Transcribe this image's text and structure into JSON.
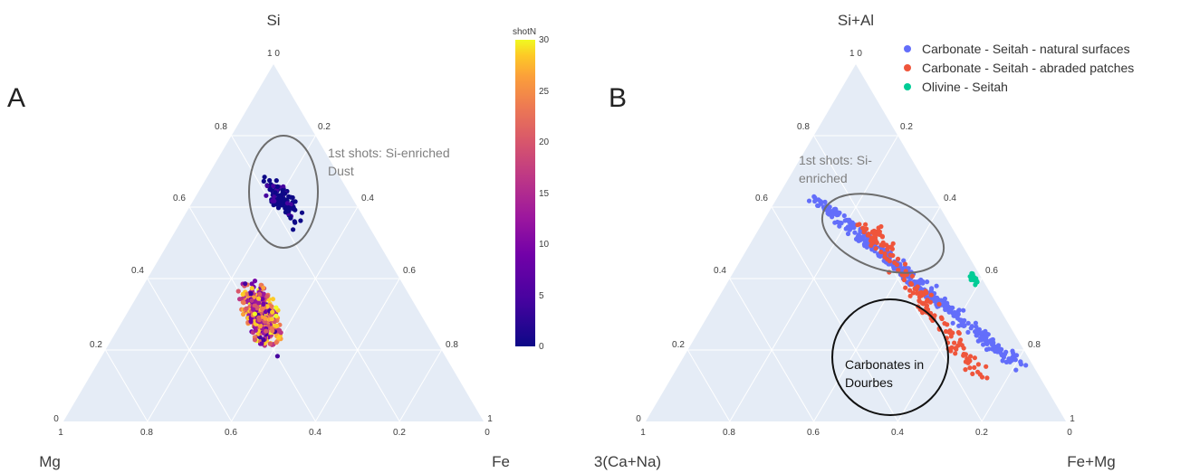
{
  "chart_data": [
    {
      "type": "scatter",
      "subtype": "ternary",
      "panel_label": "A",
      "vertex_labels": {
        "top": "Si",
        "left": "Mg",
        "right": "Fe"
      },
      "top_tick_labels": [
        "1 0",
        "0.8",
        "0.6",
        "0.4",
        "0.2",
        "0"
      ],
      "bottom_tick_labels": [
        "1",
        "0.8",
        "0.6",
        "0.4",
        "0.2",
        "0"
      ],
      "right_tick_labels": [
        "0.2",
        "0.4",
        "0.6",
        "0.8",
        "1"
      ],
      "annotation": {
        "lines": [
          "1st shots: Si-enriched",
          "Dust"
        ],
        "circle_center": {
          "si": 0.6,
          "mg": 0.18,
          "fe": 0.22
        }
      },
      "colorbar": {
        "title": "shotN",
        "range": [
          0,
          30
        ],
        "ticks": [
          "0",
          "5",
          "10",
          "15",
          "20",
          "25",
          "30"
        ],
        "colorscale": "plasma"
      },
      "series": [
        {
          "description": "first shots (shotN ~0-2), Si-enriched dust cluster",
          "center": {
            "si": 0.62,
            "mg": 0.17,
            "fe": 0.21
          },
          "count": 110,
          "shotN_range": [
            0,
            2
          ]
        },
        {
          "description": "later shots, main cloud",
          "center": {
            "si": 0.3,
            "mg": 0.38,
            "fe": 0.32
          },
          "count": 430,
          "shotN_range": [
            3,
            30
          ]
        }
      ]
    },
    {
      "type": "scatter",
      "subtype": "ternary",
      "panel_label": "B",
      "vertex_labels": {
        "top": "Si+Al",
        "left": "3(Ca+Na)",
        "right": "Fe+Mg"
      },
      "top_tick_labels": [
        "1 0",
        "0.8",
        "0.6",
        "0.4",
        "0.2",
        "0"
      ],
      "bottom_tick_labels": [
        "1",
        "0.8",
        "0.6",
        "0.4",
        "0.2",
        "0"
      ],
      "right_tick_labels": [
        "0.2",
        "0.4",
        "0.6",
        "0.8",
        "1"
      ],
      "annotations": [
        {
          "lines": [
            "1st shots: Si-",
            "enriched"
          ],
          "style": "grey"
        },
        {
          "lines": [
            "Carbonates in",
            "Dourbes"
          ],
          "style": "black"
        }
      ],
      "legend": {
        "position": "top-right"
      },
      "series": [
        {
          "name": "Carbonate - Seitah - natural surfaces",
          "color": "#636efa",
          "center": {
            "si": 0.4,
            "ca": 0.1,
            "fm": 0.5
          },
          "count": 360
        },
        {
          "name": "Carbonate - Seitah - abraded patches",
          "color": "#ef553b",
          "center": {
            "si": 0.26,
            "ca": 0.1,
            "fm": 0.64
          },
          "count": 150
        },
        {
          "name": "Olivine - Seitah",
          "color": "#00cc96",
          "center": {
            "si": 0.4,
            "ca": 0.02,
            "fm": 0.58
          },
          "count": 22
        }
      ]
    }
  ]
}
